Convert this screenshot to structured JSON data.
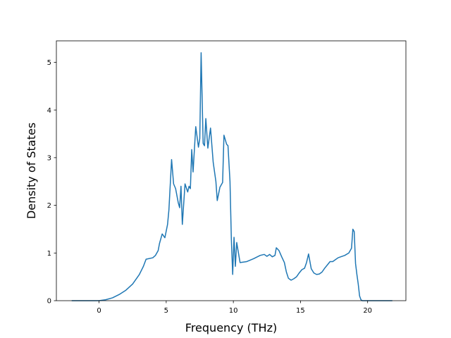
{
  "chart_data": {
    "type": "line",
    "title": "",
    "xlabel": "Frequency (THz)",
    "ylabel": "Density of States",
    "xlim": [
      -3.18,
      22.85
    ],
    "ylim": [
      0,
      5.45
    ],
    "xticks": [
      0,
      5,
      10,
      15,
      20
    ],
    "xtick_labels": [
      "0",
      "5",
      "10",
      "15",
      "20"
    ],
    "yticks": [
      0,
      1,
      2,
      3,
      4,
      5
    ],
    "ytick_labels": [
      "0",
      "1",
      "2",
      "3",
      "4",
      "5"
    ],
    "grid": false,
    "legend": false,
    "series": [
      {
        "color": "#1f77b4",
        "x": [
          -2.0,
          -1.0,
          0.0,
          0.5,
          1.0,
          1.5,
          2.0,
          2.5,
          3.0,
          3.3,
          3.5,
          4.0,
          4.2,
          4.4,
          4.5,
          4.7,
          4.9,
          5.1,
          5.2,
          5.4,
          5.55,
          5.7,
          5.9,
          6.0,
          6.1,
          6.2,
          6.4,
          6.6,
          6.7,
          6.8,
          6.9,
          7.0,
          7.2,
          7.4,
          7.5,
          7.6,
          7.75,
          7.85,
          7.95,
          8.1,
          8.3,
          8.5,
          8.7,
          8.8,
          9.0,
          9.2,
          9.3,
          9.5,
          9.6,
          9.75,
          9.85,
          9.95,
          10.05,
          10.15,
          10.25,
          10.35,
          10.5,
          11.0,
          11.5,
          12.0,
          12.3,
          12.5,
          12.7,
          12.9,
          13.1,
          13.2,
          13.4,
          13.6,
          13.8,
          13.95,
          14.1,
          14.3,
          14.5,
          14.7,
          14.9,
          15.1,
          15.3,
          15.45,
          15.6,
          15.8,
          16.0,
          16.2,
          16.4,
          16.6,
          16.8,
          17.0,
          17.2,
          17.4,
          17.6,
          17.8,
          18.0,
          18.3,
          18.6,
          18.8,
          18.9,
          19.0,
          19.1,
          19.2,
          19.3,
          19.4,
          19.5,
          19.6,
          19.7,
          19.8,
          20.0,
          21.0,
          21.8
        ],
        "y": [
          0.0,
          0.0,
          0.0,
          0.02,
          0.06,
          0.13,
          0.22,
          0.35,
          0.55,
          0.72,
          0.87,
          0.9,
          0.95,
          1.05,
          1.2,
          1.4,
          1.32,
          1.6,
          1.9,
          2.96,
          2.45,
          2.35,
          2.05,
          1.95,
          2.4,
          1.6,
          2.45,
          2.28,
          2.4,
          2.35,
          3.17,
          2.7,
          3.65,
          3.22,
          3.4,
          5.2,
          3.3,
          3.25,
          3.82,
          3.2,
          3.62,
          2.9,
          2.5,
          2.1,
          2.38,
          2.48,
          3.47,
          3.28,
          3.25,
          2.5,
          1.3,
          0.55,
          1.33,
          0.72,
          1.22,
          1.05,
          0.8,
          0.82,
          0.88,
          0.95,
          0.97,
          0.93,
          0.97,
          0.92,
          0.95,
          1.11,
          1.05,
          0.92,
          0.8,
          0.6,
          0.47,
          0.43,
          0.46,
          0.5,
          0.58,
          0.65,
          0.68,
          0.8,
          0.98,
          0.67,
          0.58,
          0.55,
          0.56,
          0.6,
          0.68,
          0.75,
          0.82,
          0.82,
          0.86,
          0.9,
          0.92,
          0.95,
          1.0,
          1.1,
          1.5,
          1.45,
          0.78,
          0.55,
          0.35,
          0.1,
          0.02,
          0.0,
          0.0,
          0.0,
          0.0,
          0.0,
          0.0
        ]
      }
    ]
  }
}
